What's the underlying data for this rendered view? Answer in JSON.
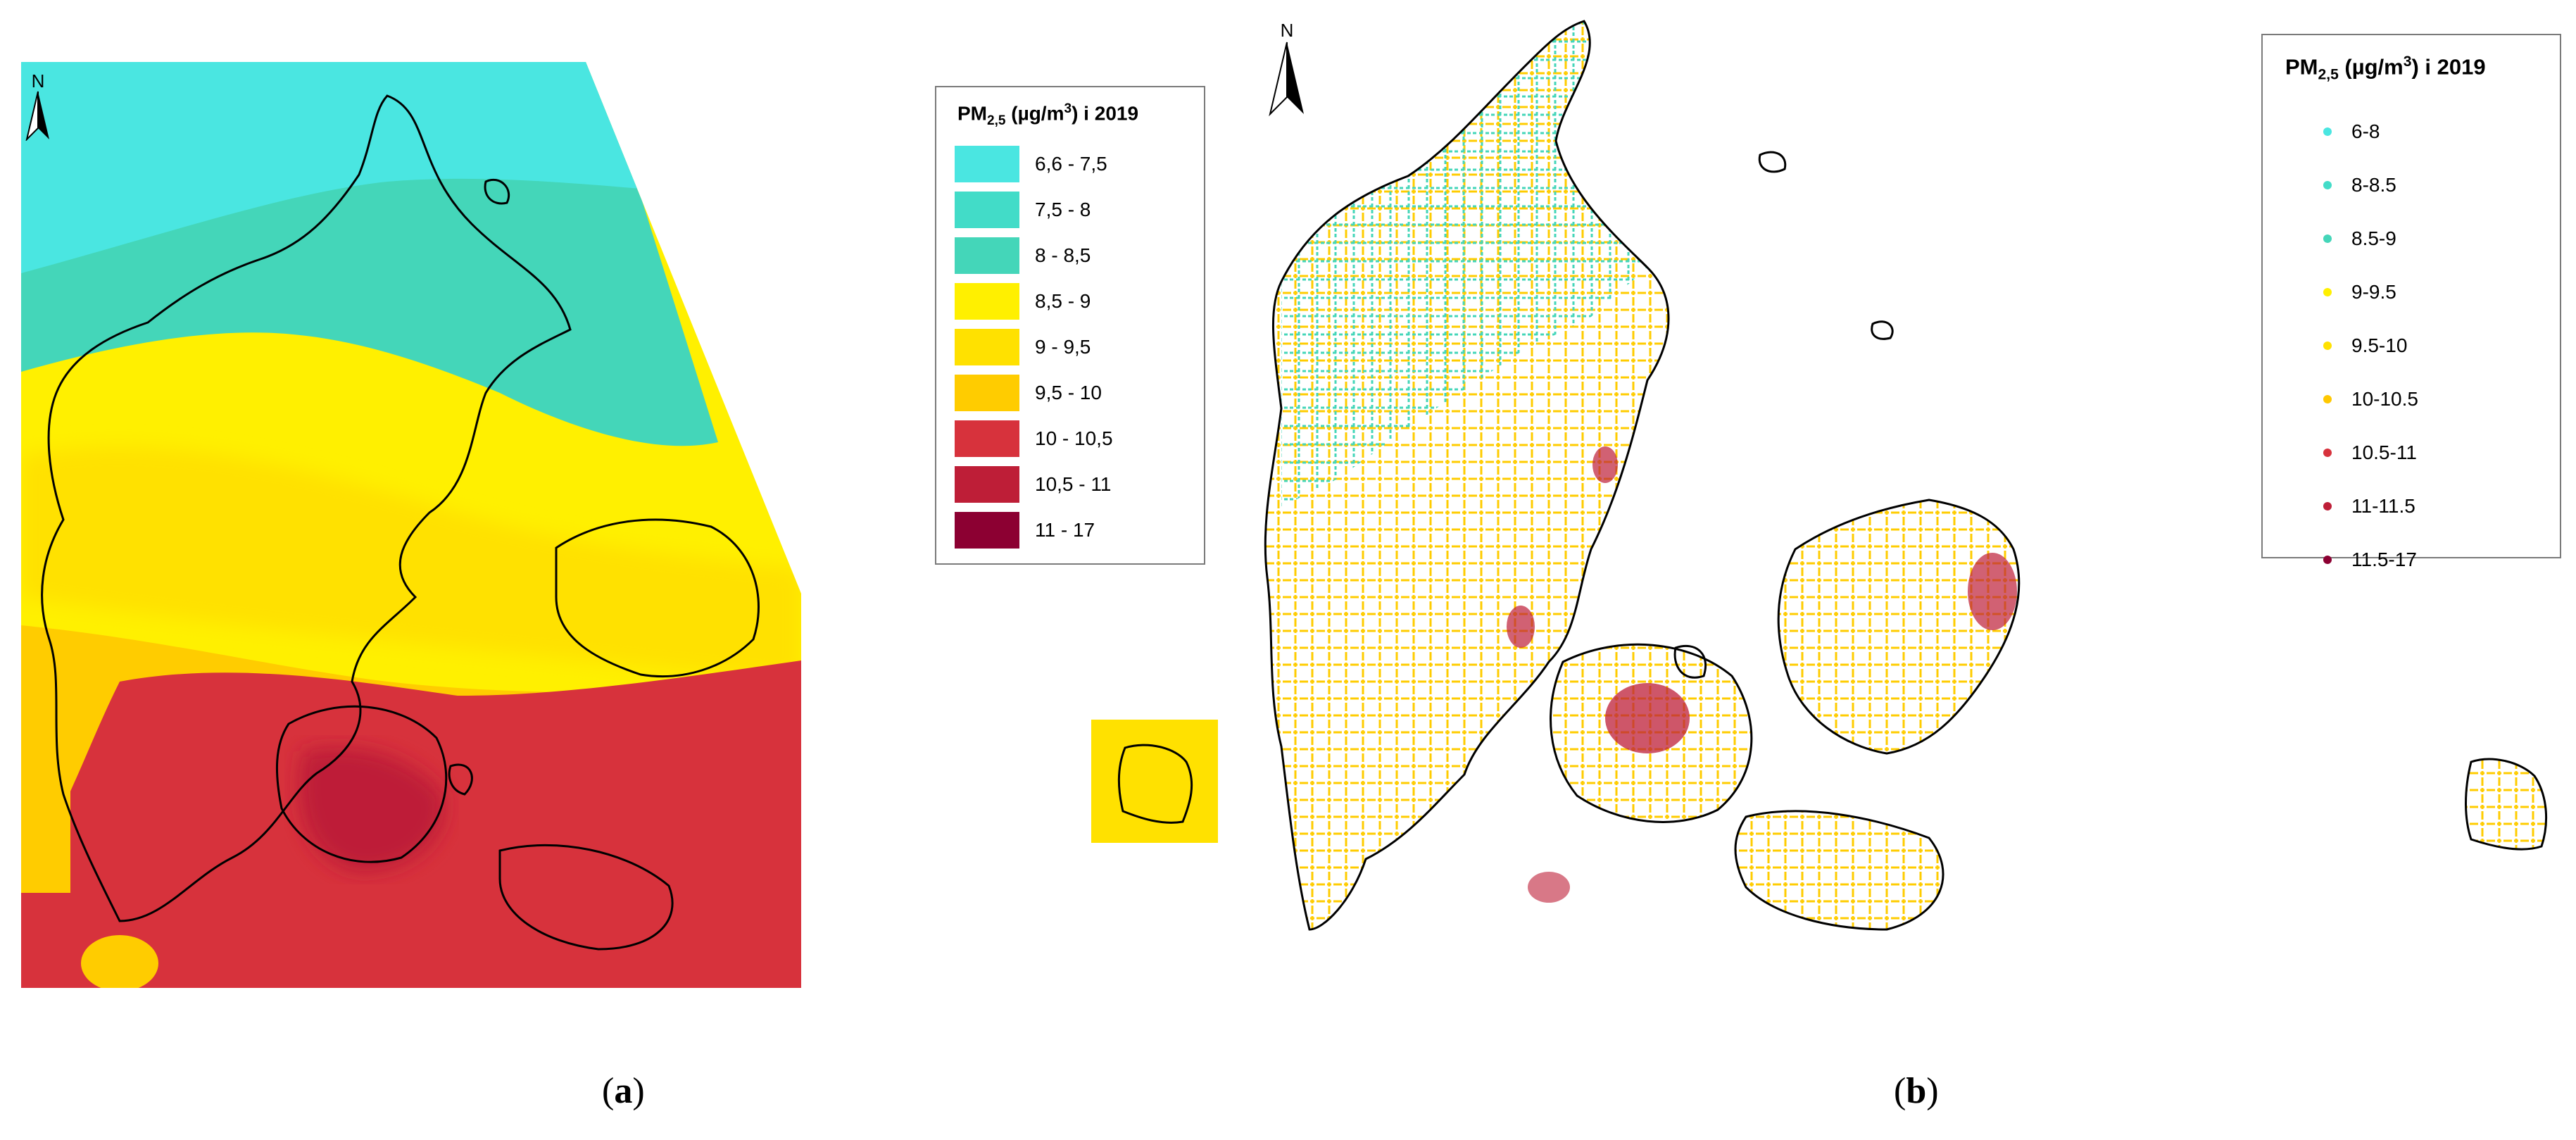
{
  "panel_a": {
    "north": "N",
    "legend": {
      "title_main": "PM",
      "title_sub": "2,5",
      "title_unit_pre": " (µg/m",
      "title_unit_sup": "3",
      "title_tail": ") i 2019",
      "items": [
        {
          "label": "6,6 - 7,5",
          "color": "#4ae6e1"
        },
        {
          "label": "7,5 - 8",
          "color": "#42dcc8"
        },
        {
          "label": "8 - 8,5",
          "color": "#44d6b9"
        },
        {
          "label": "8,5 - 9",
          "color": "#fff000"
        },
        {
          "label": "9 - 9,5",
          "color": "#ffe100"
        },
        {
          "label": "9,5 - 10",
          "color": "#ffcc00"
        },
        {
          "label": "10 - 10,5",
          "color": "#d7323c"
        },
        {
          "label": "10,5 - 11",
          "color": "#be1e37"
        },
        {
          "label": "11 - 17",
          "color": "#8c0032"
        }
      ]
    },
    "caption_open": "(",
    "caption_letter": "a",
    "caption_close": ")"
  },
  "panel_b": {
    "north": "N",
    "legend": {
      "title_main": "PM",
      "title_sub": "2,5",
      "title_unit_pre": " (µg/m",
      "title_unit_sup": "3",
      "title_tail": ") i 2019",
      "items": [
        {
          "label": "6-8",
          "color": "#4ae6e1"
        },
        {
          "label": "8-8.5",
          "color": "#42dcc8"
        },
        {
          "label": "8.5-9",
          "color": "#44d6b9"
        },
        {
          "label": "9-9.5",
          "color": "#fff000"
        },
        {
          "label": "9.5-10",
          "color": "#ffe100"
        },
        {
          "label": "10-10.5",
          "color": "#ffc800"
        },
        {
          "label": "10.5-11",
          "color": "#d7323c"
        },
        {
          "label": "11-11.5",
          "color": "#be1e37"
        },
        {
          "label": "11.5-17",
          "color": "#8c0032"
        }
      ]
    },
    "caption_open": "(",
    "caption_letter": "b",
    "caption_close": ")"
  }
}
